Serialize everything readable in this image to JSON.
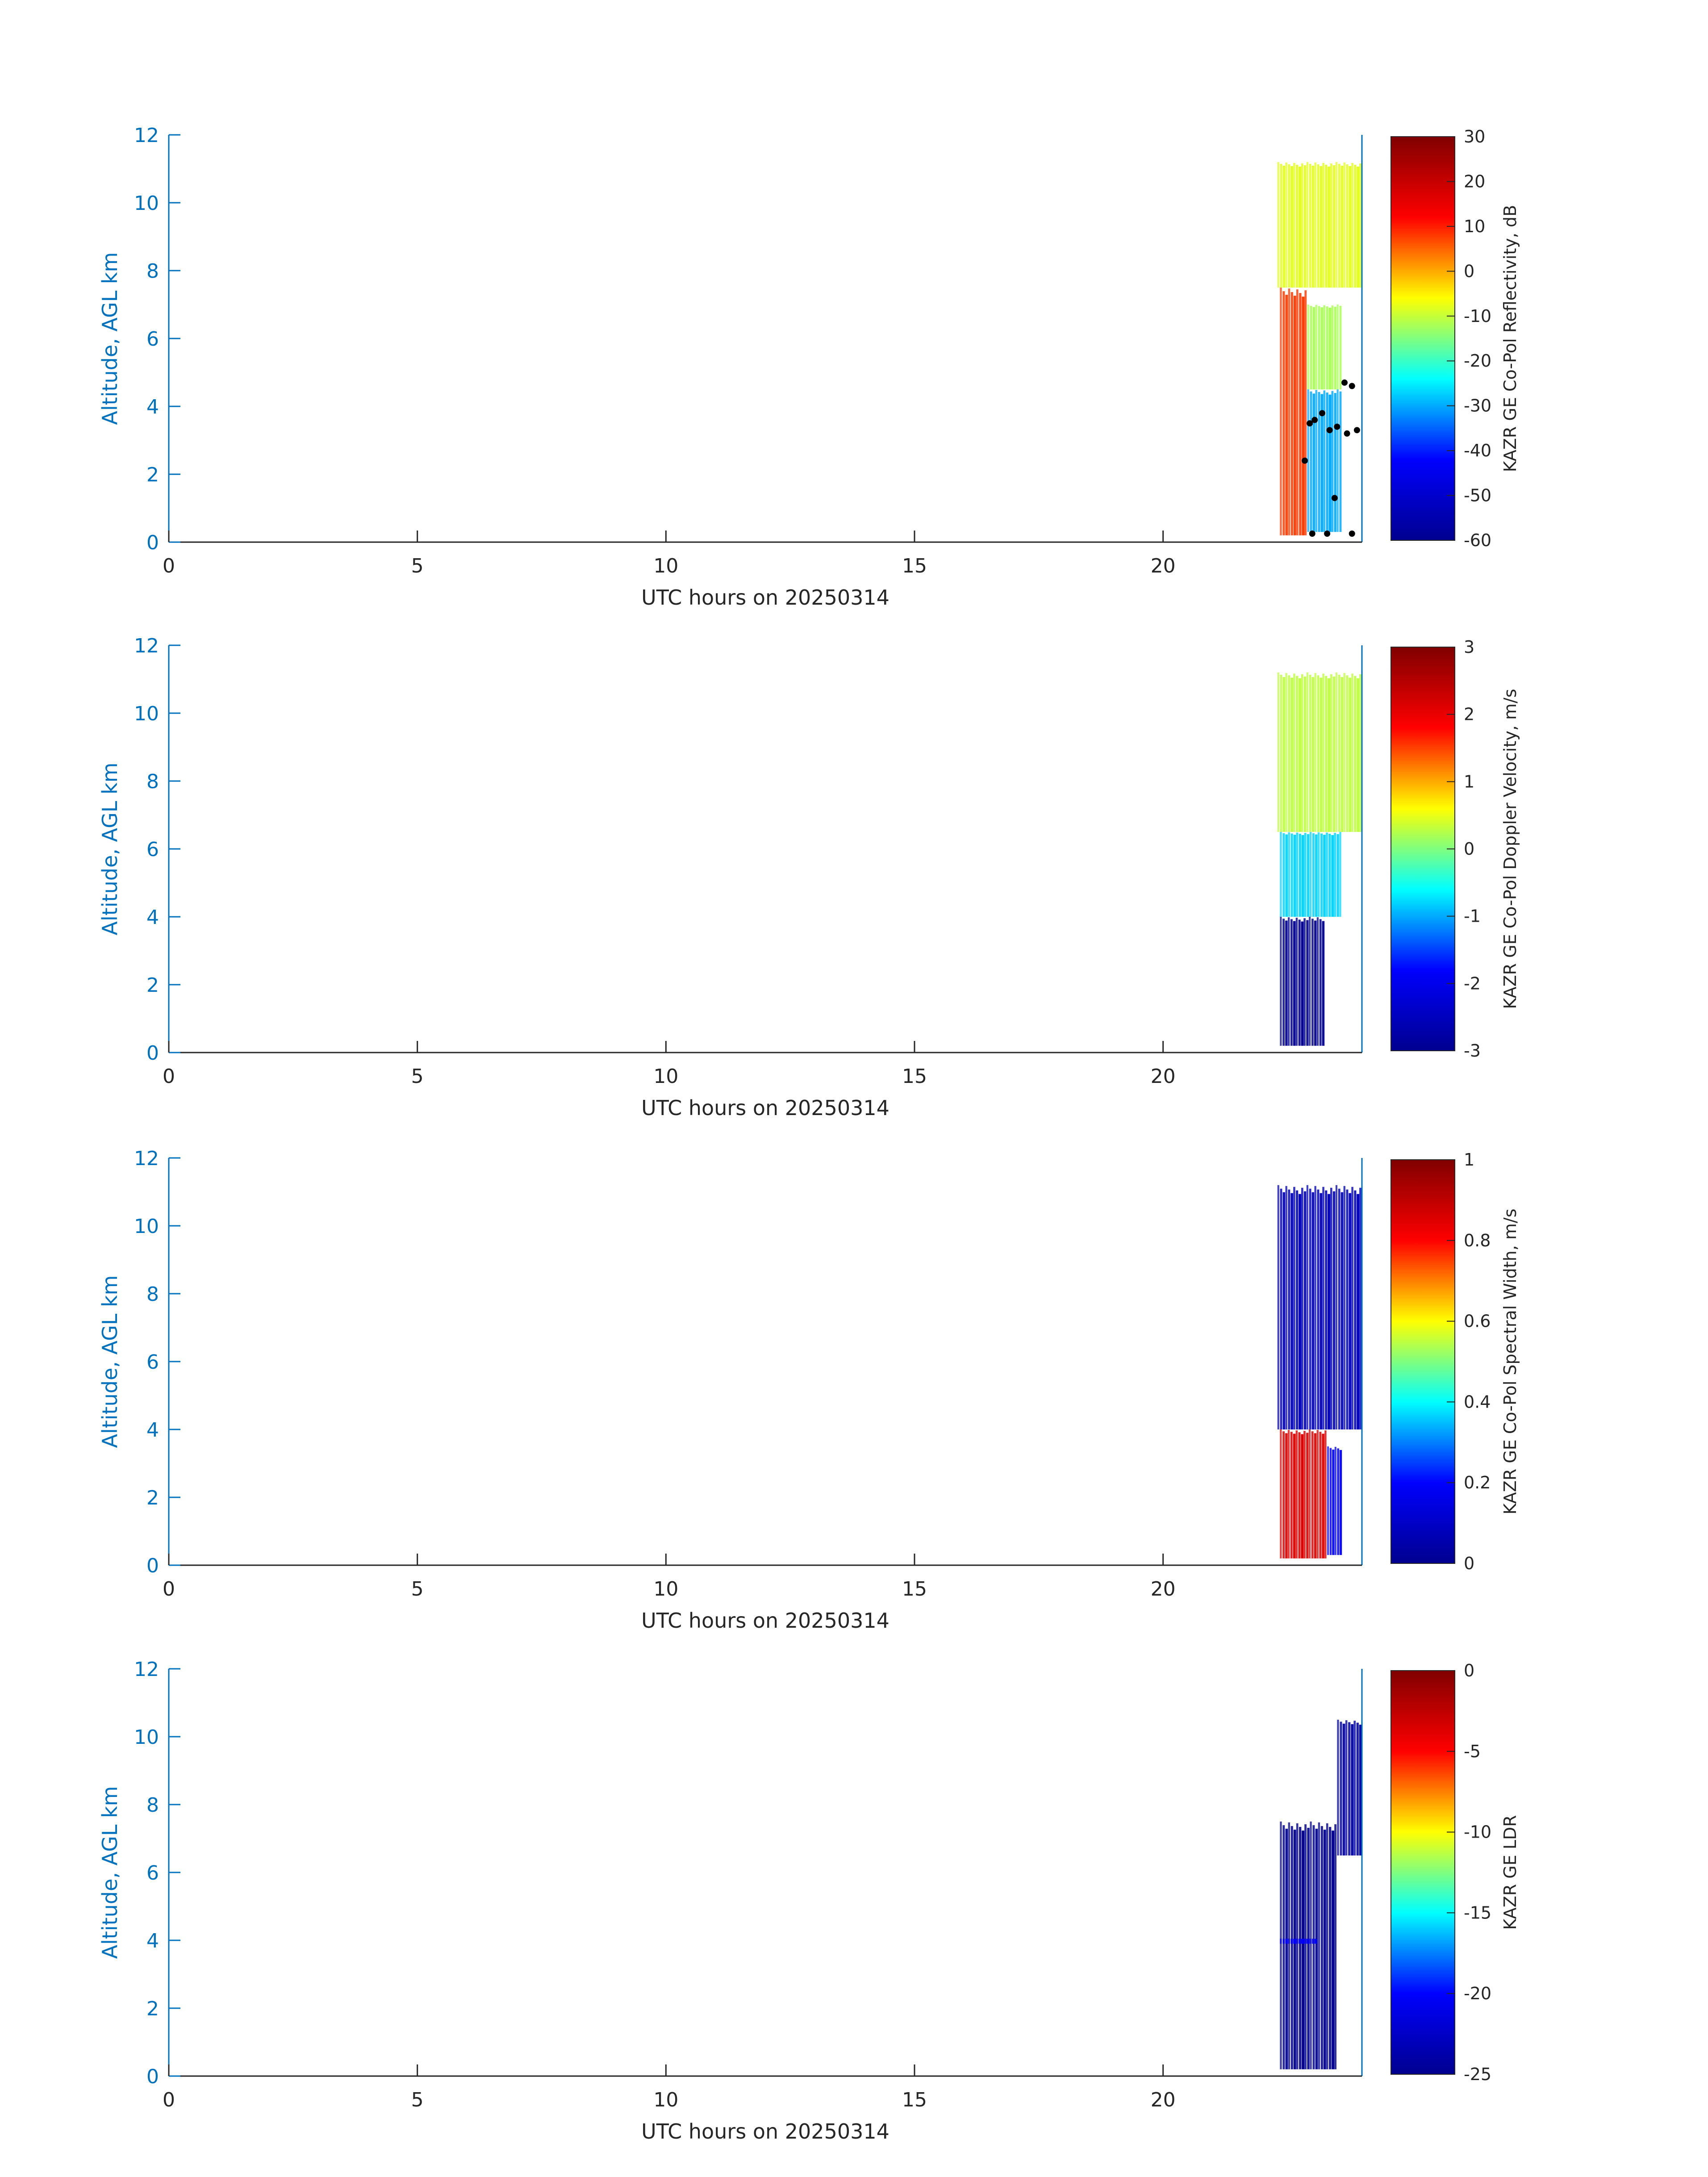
{
  "colors": {
    "axis_blue": "#0072BD",
    "axis_dark": "#262626",
    "colormap": [
      "#00008F",
      "#0000FF",
      "#00FFFF",
      "#FFFF00",
      "#FF0000",
      "#800000"
    ]
  },
  "chart_data": [
    {
      "type": "heatmap",
      "xlabel": "UTC hours on 20250314",
      "ylabel": "Altitude, AGL km",
      "xlim": [
        0,
        24
      ],
      "ylim": [
        0,
        12
      ],
      "xticks": [
        "0",
        "5",
        "10",
        "15",
        "20"
      ],
      "yticks": [
        "0",
        "2",
        "4",
        "6",
        "8",
        "10",
        "12"
      ],
      "colorbar": {
        "label": "KAZR GE Co-Pol Reflectivity, dB",
        "range": [
          -60,
          30
        ],
        "ticks": [
          "30",
          "20",
          "10",
          "0",
          "-10",
          "-20",
          "-30",
          "-40",
          "-50",
          "-60"
        ]
      },
      "data_extent": {
        "x": [
          22.3,
          24.0
        ],
        "y": [
          0.2,
          11.7
        ]
      },
      "regions": [
        {
          "x": [
            22.35,
            22.9
          ],
          "y": [
            0.2,
            7.5
          ],
          "value": 8
        },
        {
          "x": [
            22.3,
            24.0
          ],
          "y": [
            7.5,
            11.2
          ],
          "value": -8
        },
        {
          "x": [
            22.9,
            23.6
          ],
          "y": [
            0.3,
            4.5
          ],
          "value": -30
        },
        {
          "x": [
            22.9,
            23.6
          ],
          "y": [
            4.5,
            7.0
          ],
          "value": -12
        }
      ],
      "markers": [
        {
          "x": 22.85,
          "y": 2.4
        },
        {
          "x": 22.95,
          "y": 3.5
        },
        {
          "x": 23.05,
          "y": 3.6
        },
        {
          "x": 23.2,
          "y": 3.8
        },
        {
          "x": 23.35,
          "y": 3.3
        },
        {
          "x": 23.5,
          "y": 3.4
        },
        {
          "x": 23.65,
          "y": 4.7
        },
        {
          "x": 23.8,
          "y": 4.6
        },
        {
          "x": 23.7,
          "y": 3.2
        },
        {
          "x": 23.9,
          "y": 3.3
        },
        {
          "x": 23.45,
          "y": 1.3
        },
        {
          "x": 23.0,
          "y": 0.25
        },
        {
          "x": 23.3,
          "y": 0.25
        },
        {
          "x": 23.8,
          "y": 0.25
        }
      ]
    },
    {
      "type": "heatmap",
      "xlabel": "UTC hours on 20250314",
      "ylabel": "Altitude, AGL km",
      "xlim": [
        0,
        24
      ],
      "ylim": [
        0,
        12
      ],
      "xticks": [
        "0",
        "5",
        "10",
        "15",
        "20"
      ],
      "yticks": [
        "0",
        "2",
        "4",
        "6",
        "8",
        "10",
        "12"
      ],
      "colorbar": {
        "label": "KAZR GE Co-Pol Doppler Velocity, m/s",
        "range": [
          -3,
          3
        ],
        "ticks": [
          "3",
          "2",
          "1",
          "0",
          "-1",
          "-2",
          "-3"
        ]
      },
      "data_extent": {
        "x": [
          22.3,
          24.0
        ],
        "y": [
          0.2,
          11.7
        ]
      },
      "regions": [
        {
          "x": [
            22.35,
            23.25
          ],
          "y": [
            0.2,
            4.0
          ],
          "value": -3
        },
        {
          "x": [
            22.35,
            23.6
          ],
          "y": [
            4.0,
            6.5
          ],
          "value": -0.8
        },
        {
          "x": [
            22.3,
            24.0
          ],
          "y": [
            6.5,
            11.2
          ],
          "value": 0.3
        }
      ],
      "markers": []
    },
    {
      "type": "heatmap",
      "xlabel": "UTC hours on 20250314",
      "ylabel": "Altitude, AGL km",
      "xlim": [
        0,
        24
      ],
      "ylim": [
        0,
        12
      ],
      "xticks": [
        "0",
        "5",
        "10",
        "15",
        "20"
      ],
      "yticks": [
        "0",
        "2",
        "4",
        "6",
        "8",
        "10",
        "12"
      ],
      "colorbar": {
        "label": "KAZR GE Co-Pol Spectral Width, m/s",
        "range": [
          0,
          1
        ],
        "ticks": [
          "1",
          "0.8",
          "0.6",
          "0.4",
          "0.2",
          "0"
        ]
      },
      "data_extent": {
        "x": [
          22.3,
          24.0
        ],
        "y": [
          0.2,
          11.7
        ]
      },
      "regions": [
        {
          "x": [
            22.3,
            24.0
          ],
          "y": [
            4.0,
            11.2
          ],
          "value": 0.08
        },
        {
          "x": [
            22.35,
            23.3
          ],
          "y": [
            0.2,
            4.0
          ],
          "value": 0.85
        },
        {
          "x": [
            23.3,
            23.6
          ],
          "y": [
            0.3,
            3.5
          ],
          "value": 0.2
        }
      ],
      "markers": []
    },
    {
      "type": "heatmap",
      "xlabel": "UTC hours on 20250314",
      "ylabel": "Altitude, AGL km",
      "xlim": [
        0,
        24
      ],
      "ylim": [
        0,
        12
      ],
      "xticks": [
        "0",
        "5",
        "10",
        "15",
        "20"
      ],
      "yticks": [
        "0",
        "2",
        "4",
        "6",
        "8",
        "10",
        "12"
      ],
      "colorbar": {
        "label": "KAZR GE LDR",
        "range": [
          -25,
          0
        ],
        "ticks": [
          "0",
          "-5",
          "-10",
          "-15",
          "-20",
          "-25"
        ]
      },
      "data_extent": {
        "x": [
          22.3,
          24.0
        ],
        "y": [
          0.2,
          10.8
        ]
      },
      "regions": [
        {
          "x": [
            22.35,
            23.5
          ],
          "y": [
            0.2,
            7.5
          ],
          "value": -25
        },
        {
          "x": [
            22.35,
            23.1
          ],
          "y": [
            3.9,
            4.05
          ],
          "value": -20
        },
        {
          "x": [
            23.5,
            24.0
          ],
          "y": [
            6.5,
            10.5
          ],
          "value": -24
        }
      ],
      "markers": []
    }
  ]
}
